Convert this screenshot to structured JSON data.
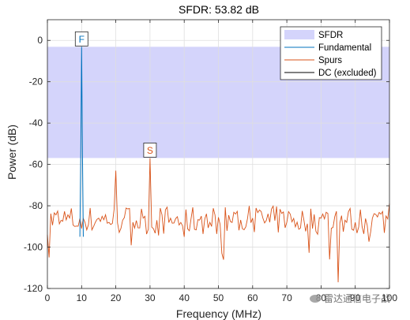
{
  "chart_data": {
    "type": "line",
    "title": "SFDR:  53.82 dB",
    "xlabel": "Frequency (MHz)",
    "ylabel": "Power (dB)",
    "xlim": [
      0,
      100
    ],
    "ylim": [
      -120,
      10
    ],
    "x_ticks": [
      0,
      10,
      20,
      30,
      40,
      50,
      60,
      70,
      80,
      90,
      100
    ],
    "y_ticks": [
      0,
      -20,
      -40,
      -60,
      -80,
      -100,
      -120
    ],
    "grid": true,
    "legend_position": "top-right",
    "colors": {
      "sfdr_band": "#d4d4fb",
      "fundamental": "#0072bd",
      "spurs": "#d95319",
      "dc": "#000000"
    },
    "sfdr_band": {
      "y_top": -3.1,
      "y_bottom": -56.9
    },
    "fundamental": {
      "x": [
        9.5,
        9.75,
        10.0,
        10.25,
        10.5
      ],
      "y": [
        -95,
        -55,
        -3.1,
        -55,
        -95
      ]
    },
    "spurs": {
      "noise_floor_mean": -87,
      "noise_floor_min": -117,
      "x": [
        0.5,
        4,
        8,
        15,
        18,
        19.4,
        20,
        20.6,
        22,
        25,
        28,
        29.4,
        30,
        30.6,
        32,
        36,
        40,
        45,
        48,
        51,
        55,
        60,
        65,
        70,
        75,
        80,
        85,
        90,
        95,
        100
      ],
      "y": [
        -105,
        -87,
        -90,
        -86,
        -88,
        -80,
        -63,
        -80,
        -87,
        -88,
        -86,
        -78,
        -57,
        -78,
        -87,
        -86,
        -95,
        -85,
        -90,
        -103,
        -84,
        -86,
        -88,
        -88,
        -87,
        -86,
        -117,
        -88,
        -86,
        -79
      ]
    },
    "series": [
      {
        "name": "SFDR"
      },
      {
        "name": "Fundamental"
      },
      {
        "name": "Spurs"
      },
      {
        "name": "DC (excluded)"
      }
    ],
    "markers": [
      {
        "label": "F",
        "x": 10,
        "y": -3.1,
        "color": "#0072bd"
      },
      {
        "label": "S",
        "x": 30,
        "y": -56.9,
        "color": "#d95319"
      }
    ]
  },
  "watermark": {
    "text": "雷达通信电子战"
  }
}
